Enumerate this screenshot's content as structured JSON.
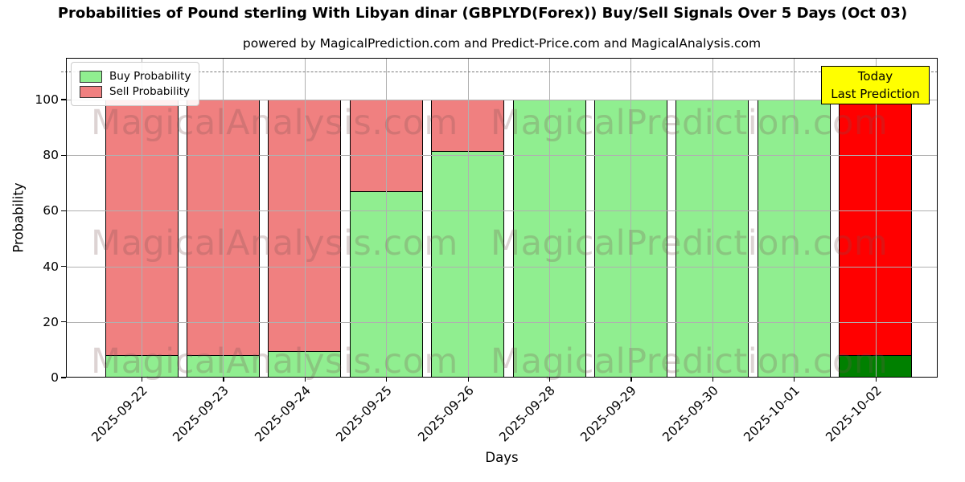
{
  "chart_data": {
    "type": "bar",
    "stacked": true,
    "title": "Probabilities of Pound sterling With Libyan dinar (GBPLYD(Forex)) Buy/Sell Signals Over 5 Days (Oct 03)",
    "subtitle": "powered by MagicalPrediction.com and Predict-Price.com and MagicalAnalysis.com",
    "xlabel": "Days",
    "ylabel": "Probability",
    "ylim": [
      0,
      115
    ],
    "yticks": [
      0,
      20,
      40,
      60,
      80,
      100
    ],
    "grid": true,
    "legend_position": "upper left",
    "categories": [
      "2025-09-22",
      "2025-09-23",
      "2025-09-24",
      "2025-09-25",
      "2025-09-26",
      "2025-09-28",
      "2025-09-29",
      "2025-09-30",
      "2025-10-01",
      "2025-10-02"
    ],
    "series": [
      {
        "name": "Buy Probability",
        "color": "#90EE90",
        "values": [
          8,
          8,
          9.5,
          67,
          81.5,
          100,
          100,
          100,
          100,
          8
        ]
      },
      {
        "name": "Sell Probability",
        "color": "#F08080",
        "values": [
          92,
          92,
          90.5,
          33,
          18.5,
          0,
          0,
          0,
          0,
          92
        ]
      }
    ],
    "bar_edge_color": "#000000",
    "threshold_line": {
      "y": 110,
      "style": "dashed",
      "color": "#7a7a7a"
    },
    "today_bar": {
      "index": 9,
      "buy_color": "#008000",
      "sell_color": "#FF0000",
      "annotation": [
        "Today",
        "Last Prediction"
      ],
      "annotation_bg": "#FFFF00"
    },
    "watermarks": {
      "left": "MagicalAnalysis.com",
      "right": "MagicalPrediction.com",
      "rows": 3
    }
  }
}
